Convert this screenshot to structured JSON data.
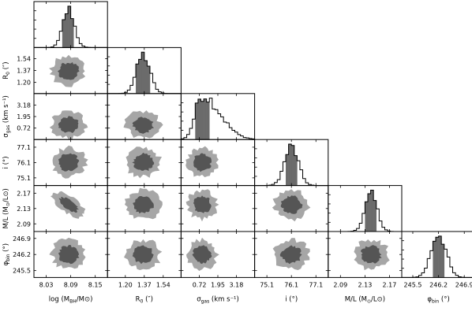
{
  "chart_data": {
    "type": "corner",
    "parameters": [
      {
        "key": "mbh",
        "name": "log (M",
        "sub": "BH",
        "mid": "/M",
        "sub2": "⊙",
        "end": ")",
        "unit_short": "",
        "range": [
          8.0,
          8.18
        ],
        "ticks": [
          "8.03",
          "8.09",
          "8.15"
        ],
        "tick_values": [
          8.03,
          8.09,
          8.15
        ],
        "median": 8.085,
        "sigma": 0.014,
        "ylabel": null
      },
      {
        "key": "r0",
        "name": "R",
        "sub": "0",
        "mid": " (″)",
        "sub2": "",
        "end": "",
        "range": [
          1.04,
          1.7
        ],
        "ticks": [
          "1.20",
          "1.37",
          "1.54"
        ],
        "tick_values": [
          1.2,
          1.37,
          1.54
        ],
        "median": 1.36,
        "sigma": 0.06,
        "ylabel": "R0 (″)"
      },
      {
        "key": "sgas",
        "name": "σ",
        "sub": "gas",
        "mid": " (km s",
        "sub2": "",
        "end": "⁻¹)",
        "range": [
          -0.5,
          4.4
        ],
        "ticks": [
          "0.72",
          "1.95",
          "3.18"
        ],
        "tick_values": [
          0.72,
          1.95,
          3.18
        ],
        "median": 0.9,
        "sigma": 0.45,
        "ylabel": "σgas (km s⁻¹)"
      },
      {
        "key": "inc",
        "name": "i (°)",
        "sub": "",
        "mid": "",
        "sub2": "",
        "end": "",
        "range": [
          74.6,
          77.6
        ],
        "ticks": [
          "75.1",
          "76.1",
          "77.1"
        ],
        "tick_values": [
          75.1,
          76.1,
          77.1
        ],
        "median": 76.1,
        "sigma": 0.28,
        "ylabel": "i (°)"
      },
      {
        "key": "ml",
        "name": "M/L (M",
        "sub": "⊙",
        "mid": "/L",
        "sub2": "⊙",
        "end": ")",
        "range": [
          2.07,
          2.19
        ],
        "ticks": [
          "2.09",
          "2.13",
          "2.17"
        ],
        "tick_values": [
          2.09,
          2.13,
          2.17
        ],
        "median": 2.14,
        "sigma": 0.01,
        "ylabel": "M/L (M⊙/L⊙)"
      },
      {
        "key": "phi",
        "name": "φ",
        "sub": "bin",
        "mid": " (°)",
        "sub2": "",
        "end": "",
        "range": [
          245.2,
          247.2
        ],
        "ticks": [
          "245.5",
          "246.2",
          "246.9"
        ],
        "tick_values": [
          245.5,
          246.2,
          246.9
        ],
        "median": 246.2,
        "sigma": 0.2,
        "ylabel": "φbin (°)"
      }
    ],
    "y_tick_labels": {
      "r0": [
        "1.20",
        "1.37",
        "1.54"
      ],
      "sgas": [
        "0.72",
        "1.95",
        "3.18"
      ],
      "inc": [
        "75.1",
        "76.1",
        "77.1"
      ],
      "ml": [
        "2.09",
        "2.13",
        "2.17"
      ],
      "phi": [
        "245.5",
        "246.2",
        "246.9"
      ]
    },
    "y_labels": {
      "r0": {
        "main": "R",
        "sub": "0",
        "rest": " (″)"
      },
      "sgas": {
        "main": "σ",
        "sub": "gas",
        "rest": " (km s⁻¹)"
      },
      "inc": {
        "main": "i (°)",
        "sub": "",
        "rest": ""
      },
      "ml": {
        "main": "M/L (M",
        "sub": "⊙",
        "rest": "/L⊙)"
      },
      "phi": {
        "main": "φ",
        "sub": "bin",
        "rest": " (°)"
      }
    },
    "x_labels": [
      {
        "main": "log (M",
        "sub": "BH",
        "rest": "/M⊙)"
      },
      {
        "main": "R",
        "sub": "0",
        "rest": " (″)"
      },
      {
        "main": "σ",
        "sub": "gas",
        "rest": " (km s⁻¹)"
      },
      {
        "main": "i (°)",
        "sub": "",
        "rest": ""
      },
      {
        "main": "M/L (M",
        "sub": "⊙",
        "rest": "/L⊙)"
      },
      {
        "main": "φ",
        "sub": "bin",
        "rest": " (°)"
      }
    ],
    "contour_levels": [
      "1σ",
      "2σ"
    ],
    "colors": {
      "inner": "#555555",
      "outer": "#a6a6a6",
      "hist": "#000000",
      "shade": "#6b6b6b"
    }
  }
}
